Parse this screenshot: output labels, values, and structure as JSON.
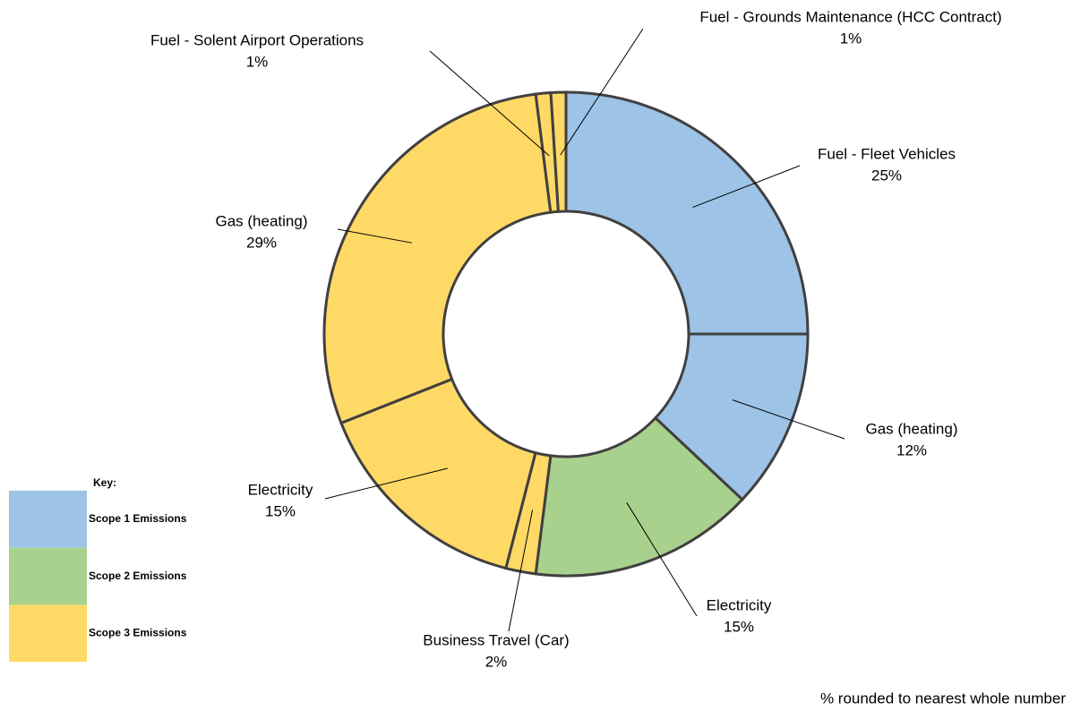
{
  "chart_data": {
    "type": "donut",
    "categories": [
      "Fuel - Fleet Vehicles",
      "Gas (heating)",
      "Electricity",
      "Business Travel (Car)",
      "Electricity",
      "Gas (heating)",
      "Fuel - Solent Airport Operations",
      "Fuel - Grounds Maintenance (HCC Contract)"
    ],
    "values": [
      25,
      12,
      15,
      2,
      15,
      29,
      1,
      1
    ],
    "value_labels": [
      "25%",
      "12%",
      "15%",
      "2%",
      "15%",
      "29%",
      "1%",
      "1%"
    ],
    "colors": [
      "#9dc3e6",
      "#9dc3e6",
      "#a9d18e",
      "#ffd966",
      "#ffd966",
      "#ffd966",
      "#ffd966",
      "#ffd966"
    ],
    "legend": {
      "title": "Key:",
      "items": [
        {
          "name": "Scope 1 Emissions",
          "color": "#9dc3e6"
        },
        {
          "name": "Scope 2 Emissions",
          "color": "#a9d18e"
        },
        {
          "name": "Scope 3 Emissions",
          "color": "#ffd966"
        }
      ]
    },
    "note": "% rounded to nearest whole number"
  }
}
